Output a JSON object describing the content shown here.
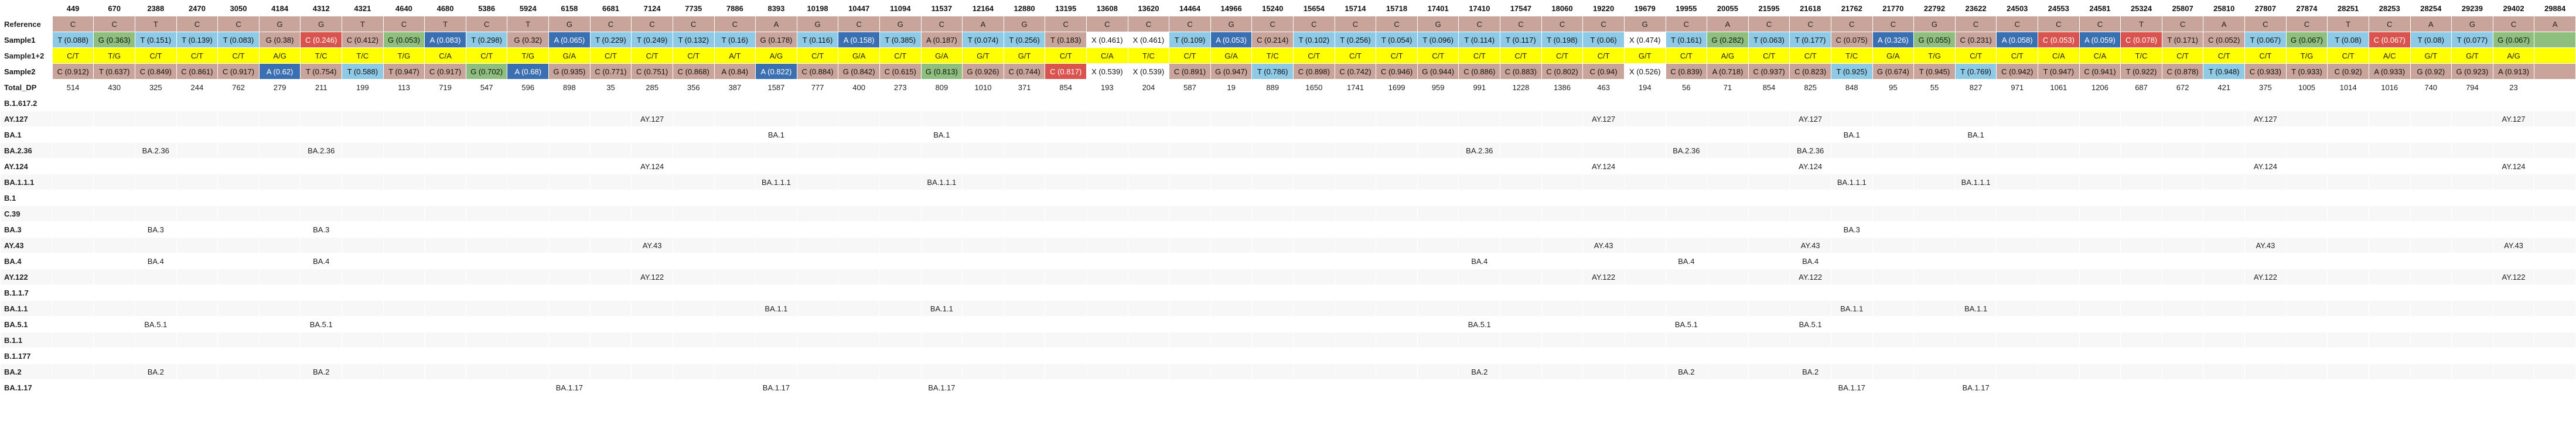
{
  "labels": {
    "reference": "Reference",
    "sample1": "Sample1",
    "sample12": "Sample1+2",
    "sample2": "Sample2",
    "total_dp": "Total_DP"
  },
  "positions": [
    "449",
    "670",
    "2388",
    "2470",
    "3050",
    "4184",
    "4312",
    "4321",
    "4640",
    "4680",
    "5386",
    "5924",
    "6158",
    "6681",
    "7124",
    "7735",
    "7886",
    "8393",
    "10198",
    "10447",
    "11094",
    "11537",
    "12164",
    "12880",
    "13195",
    "13608",
    "13620",
    "14464",
    "14966",
    "15240",
    "15654",
    "15714",
    "15718",
    "17401",
    "17410",
    "17547",
    "18060",
    "19220",
    "19679",
    "19955",
    "20055",
    "21595",
    "21618",
    "21762",
    "21770",
    "22792",
    "23622",
    "24503",
    "24553",
    "24581",
    "25324",
    "25807",
    "25810",
    "27807",
    "27874",
    "28251",
    "28253",
    "28254",
    "29239",
    "29402",
    "29884"
  ],
  "reference": [
    "C",
    "C",
    "T",
    "C",
    "C",
    "G",
    "G",
    "T",
    "C",
    "T",
    "C",
    "T",
    "G",
    "C",
    "C",
    "C",
    "C",
    "A",
    "G",
    "C",
    "G",
    "C",
    "A",
    "G",
    "C",
    "C",
    "C",
    "C",
    "G",
    "C",
    "C",
    "C",
    "C",
    "G",
    "C",
    "C",
    "C",
    "C",
    "G",
    "C",
    "A",
    "C",
    "C",
    "C",
    "C",
    "G",
    "C",
    "C",
    "C",
    "C",
    "T",
    "C",
    "A",
    "C",
    "C",
    "T",
    "C",
    "A",
    "G",
    "C",
    "A"
  ],
  "sample1": [
    {
      "t": "T (0.088)",
      "c": "cT"
    },
    {
      "t": "G (0.363)",
      "c": "cG"
    },
    {
      "t": "T (0.151)",
      "c": "cT"
    },
    {
      "t": "T (0.139)",
      "c": "cT"
    },
    {
      "t": "T (0.083)",
      "c": "cT"
    },
    {
      "t": "G (0.38)",
      "c": "cC"
    },
    {
      "t": "C (0.246)",
      "c": "cCs"
    },
    {
      "t": "C (0.412)",
      "c": "cC"
    },
    {
      "t": "G (0.053)",
      "c": "cG"
    },
    {
      "t": "A (0.083)",
      "c": "cA"
    },
    {
      "t": "T (0.298)",
      "c": "cT"
    },
    {
      "t": "G (0.32)",
      "c": "cC"
    },
    {
      "t": "A (0.065)",
      "c": "cA"
    },
    {
      "t": "T (0.229)",
      "c": "cT"
    },
    {
      "t": "T (0.249)",
      "c": "cT"
    },
    {
      "t": "T (0.132)",
      "c": "cT"
    },
    {
      "t": "T (0.16)",
      "c": "cT"
    },
    {
      "t": "G (0.178)",
      "c": "cC"
    },
    {
      "t": "T (0.116)",
      "c": "cT"
    },
    {
      "t": "A (0.158)",
      "c": "cA"
    },
    {
      "t": "T (0.385)",
      "c": "cT"
    },
    {
      "t": "A (0.187)",
      "c": "cC"
    },
    {
      "t": "T (0.074)",
      "c": "cT"
    },
    {
      "t": "T (0.256)",
      "c": "cT"
    },
    {
      "t": "T (0.183)",
      "c": "cC"
    },
    {
      "t": "X (0.461)",
      "c": "cX"
    },
    {
      "t": "X (0.461)",
      "c": "cX"
    },
    {
      "t": "T (0.109)",
      "c": "cT"
    },
    {
      "t": "A (0.053)",
      "c": "cA"
    },
    {
      "t": "C (0.214)",
      "c": "cC"
    },
    {
      "t": "T (0.102)",
      "c": "cT"
    },
    {
      "t": "T (0.256)",
      "c": "cT"
    },
    {
      "t": "T (0.054)",
      "c": "cT"
    },
    {
      "t": "T (0.096)",
      "c": "cT"
    },
    {
      "t": "T (0.114)",
      "c": "cT"
    },
    {
      "t": "T (0.117)",
      "c": "cT"
    },
    {
      "t": "T (0.198)",
      "c": "cT"
    },
    {
      "t": "T (0.06)",
      "c": "cT"
    },
    {
      "t": "X (0.474)",
      "c": "cX"
    },
    {
      "t": "T (0.161)",
      "c": "cT"
    },
    {
      "t": "G (0.282)",
      "c": "cG"
    },
    {
      "t": "T (0.063)",
      "c": "cT"
    },
    {
      "t": "T (0.177)",
      "c": "cT"
    },
    {
      "t": "C (0.075)",
      "c": "cC"
    },
    {
      "t": "A (0.326)",
      "c": "cA"
    },
    {
      "t": "G (0.055)",
      "c": "cG"
    },
    {
      "t": "C (0.231)",
      "c": "cC"
    },
    {
      "t": "A (0.058)",
      "c": "cA"
    },
    {
      "t": "C (0.053)",
      "c": "cCs"
    },
    {
      "t": "A (0.059)",
      "c": "cA"
    },
    {
      "t": "C (0.078)",
      "c": "cCs"
    },
    {
      "t": "T (0.171)",
      "c": "cC"
    },
    {
      "t": "C (0.052)",
      "c": "cC"
    },
    {
      "t": "T (0.067)",
      "c": "cT"
    },
    {
      "t": "G (0.067)",
      "c": "cG"
    },
    {
      "t": "T (0.08)",
      "c": "cT"
    },
    {
      "t": "C (0.067)",
      "c": "cCs"
    },
    {
      "t": "T (0.08)",
      "c": "cT"
    },
    {
      "t": "T (0.077)",
      "c": "cT"
    },
    {
      "t": "G (0.067)",
      "c": "cG"
    },
    {
      "t": "",
      "c": "cG"
    }
  ],
  "sample12": [
    "C/T",
    "T/G",
    "C/T",
    "C/T",
    "C/T",
    "A/G",
    "T/C",
    "T/C",
    "T/G",
    "C/A",
    "C/T",
    "T/G",
    "G/A",
    "C/T",
    "C/T",
    "C/T",
    "A/T",
    "A/G",
    "C/T",
    "G/A",
    "C/T",
    "G/A",
    "G/T",
    "G/T",
    "C/T",
    "C/A",
    "T/C",
    "C/T",
    "G/A",
    "T/C",
    "C/T",
    "C/T",
    "C/T",
    "C/T",
    "C/T",
    "C/T",
    "C/T",
    "C/T",
    "G/T",
    "C/T",
    "A/G",
    "C/T",
    "C/T",
    "T/C",
    "G/A",
    "T/G",
    "C/T",
    "C/T",
    "C/A",
    "C/A",
    "T/C",
    "C/T",
    "C/T",
    "C/T",
    "T/G",
    "C/T",
    "A/C",
    "G/T",
    "G/T",
    "A/G",
    ""
  ],
  "sample2": [
    {
      "t": "C (0.912)",
      "c": "cC"
    },
    {
      "t": "T (0.637)",
      "c": "cC"
    },
    {
      "t": "C (0.849)",
      "c": "cC"
    },
    {
      "t": "C (0.861)",
      "c": "cC"
    },
    {
      "t": "C (0.917)",
      "c": "cC"
    },
    {
      "t": "A (0.62)",
      "c": "cA"
    },
    {
      "t": "T (0.754)",
      "c": "cC"
    },
    {
      "t": "T (0.588)",
      "c": "cT"
    },
    {
      "t": "T (0.947)",
      "c": "cC"
    },
    {
      "t": "C (0.917)",
      "c": "cC"
    },
    {
      "t": "G (0.702)",
      "c": "cG"
    },
    {
      "t": "A (0.68)",
      "c": "cA"
    },
    {
      "t": "G (0.935)",
      "c": "cC"
    },
    {
      "t": "C (0.771)",
      "c": "cC"
    },
    {
      "t": "C (0.751)",
      "c": "cC"
    },
    {
      "t": "C (0.868)",
      "c": "cC"
    },
    {
      "t": "A (0.84)",
      "c": "cC"
    },
    {
      "t": "A (0.822)",
      "c": "cA"
    },
    {
      "t": "C (0.884)",
      "c": "cC"
    },
    {
      "t": "G (0.842)",
      "c": "cC"
    },
    {
      "t": "C (0.615)",
      "c": "cC"
    },
    {
      "t": "G (0.813)",
      "c": "cG"
    },
    {
      "t": "G (0.926)",
      "c": "cC"
    },
    {
      "t": "C (0.744)",
      "c": "cC"
    },
    {
      "t": "C (0.817)",
      "c": "cCs"
    },
    {
      "t": "X (0.539)",
      "c": "cX"
    },
    {
      "t": "X (0.539)",
      "c": "cX"
    },
    {
      "t": "C (0.891)",
      "c": "cC"
    },
    {
      "t": "G (0.947)",
      "c": "cC"
    },
    {
      "t": "T (0.786)",
      "c": "cT"
    },
    {
      "t": "C (0.898)",
      "c": "cC"
    },
    {
      "t": "C (0.742)",
      "c": "cC"
    },
    {
      "t": "C (0.946)",
      "c": "cC"
    },
    {
      "t": "G (0.944)",
      "c": "cC"
    },
    {
      "t": "C (0.886)",
      "c": "cC"
    },
    {
      "t": "C (0.883)",
      "c": "cC"
    },
    {
      "t": "C (0.802)",
      "c": "cC"
    },
    {
      "t": "C (0.94)",
      "c": "cC"
    },
    {
      "t": "X (0.526)",
      "c": "cX"
    },
    {
      "t": "C (0.839)",
      "c": "cC"
    },
    {
      "t": "A (0.718)",
      "c": "cC"
    },
    {
      "t": "C (0.937)",
      "c": "cC"
    },
    {
      "t": "C (0.823)",
      "c": "cC"
    },
    {
      "t": "T (0.925)",
      "c": "cT"
    },
    {
      "t": "G (0.674)",
      "c": "cC"
    },
    {
      "t": "T (0.945)",
      "c": "cC"
    },
    {
      "t": "T (0.769)",
      "c": "cT"
    },
    {
      "t": "C (0.942)",
      "c": "cC"
    },
    {
      "t": "T (0.947)",
      "c": "cC"
    },
    {
      "t": "C (0.941)",
      "c": "cC"
    },
    {
      "t": "T (0.922)",
      "c": "cC"
    },
    {
      "t": "C (0.878)",
      "c": "cC"
    },
    {
      "t": "T (0.948)",
      "c": "cT"
    },
    {
      "t": "C (0.933)",
      "c": "cC"
    },
    {
      "t": "T (0.933)",
      "c": "cC"
    },
    {
      "t": "C (0.92)",
      "c": "cC"
    },
    {
      "t": "A (0.933)",
      "c": "cC"
    },
    {
      "t": "G (0.92)",
      "c": "cC"
    },
    {
      "t": "G (0.923)",
      "c": "cC"
    },
    {
      "t": "A (0.913)",
      "c": "cC"
    },
    {
      "t": "",
      "c": "cC"
    }
  ],
  "total_dp": [
    "514",
    "430",
    "325",
    "244",
    "762",
    "279",
    "211",
    "199",
    "113",
    "719",
    "547",
    "596",
    "898",
    "35",
    "285",
    "356",
    "387",
    "1587",
    "777",
    "400",
    "273",
    "809",
    "1010",
    "371",
    "854",
    "193",
    "204",
    "587",
    "19",
    "889",
    "1650",
    "1741",
    "1699",
    "959",
    "991",
    "1228",
    "1386",
    "463",
    "194",
    "56",
    "71",
    "854",
    "825",
    "848",
    "95",
    "55",
    "827",
    "971",
    "1061",
    "1206",
    "687",
    "672",
    "421",
    "375",
    "1005",
    "1014",
    "1016",
    "740",
    "794",
    "23",
    ""
  ],
  "lineages": [
    {
      "name": "B.1.617.2",
      "cells": {}
    },
    {
      "name": "AY.127",
      "cells": {
        "14": "AY.127",
        "37": "AY.127",
        "42": "AY.127",
        "53": "AY.127",
        "59": "AY.127"
      }
    },
    {
      "name": "BA.1",
      "cells": {
        "17": "BA.1",
        "21": "BA.1",
        "43": "BA.1",
        "46": "BA.1"
      }
    },
    {
      "name": "BA.2.36",
      "cells": {
        "2": "BA.2.36",
        "6": "BA.2.36",
        "34": "BA.2.36",
        "39": "BA.2.36",
        "42": "BA.2.36"
      }
    },
    {
      "name": "AY.124",
      "cells": {
        "14": "AY.124",
        "37": "AY.124",
        "42": "AY.124",
        "53": "AY.124",
        "59": "AY.124"
      }
    },
    {
      "name": "BA.1.1.1",
      "cells": {
        "17": "BA.1.1.1",
        "21": "BA.1.1.1",
        "43": "BA.1.1.1",
        "46": "BA.1.1.1"
      }
    },
    {
      "name": "B.1",
      "cells": {}
    },
    {
      "name": "C.39",
      "cells": {}
    },
    {
      "name": "BA.3",
      "cells": {
        "2": "BA.3",
        "6": "BA.3",
        "43": "BA.3"
      }
    },
    {
      "name": "AY.43",
      "cells": {
        "14": "AY.43",
        "37": "AY.43",
        "42": "AY.43",
        "53": "AY.43",
        "59": "AY.43"
      }
    },
    {
      "name": "BA.4",
      "cells": {
        "2": "BA.4",
        "6": "BA.4",
        "34": "BA.4",
        "39": "BA.4",
        "42": "BA.4"
      }
    },
    {
      "name": "AY.122",
      "cells": {
        "14": "AY.122",
        "37": "AY.122",
        "42": "AY.122",
        "53": "AY.122",
        "59": "AY.122"
      }
    },
    {
      "name": "B.1.1.7",
      "cells": {}
    },
    {
      "name": "BA.1.1",
      "cells": {
        "17": "BA.1.1",
        "21": "BA.1.1",
        "43": "BA.1.1",
        "46": "BA.1.1"
      }
    },
    {
      "name": "BA.5.1",
      "cells": {
        "2": "BA.5.1",
        "6": "BA.5.1",
        "34": "BA.5.1",
        "39": "BA.5.1",
        "42": "BA.5.1"
      }
    },
    {
      "name": "B.1.1",
      "cells": {}
    },
    {
      "name": "B.1.177",
      "cells": {}
    },
    {
      "name": "BA.2",
      "cells": {
        "2": "BA.2",
        "6": "BA.2",
        "34": "BA.2",
        "39": "BA.2",
        "42": "BA.2"
      }
    },
    {
      "name": "BA.1.17",
      "cells": {
        "12": "BA.1.17",
        "17": "BA.1.17",
        "21": "BA.1.17",
        "43": "BA.1.17",
        "46": "BA.1.17"
      }
    }
  ]
}
